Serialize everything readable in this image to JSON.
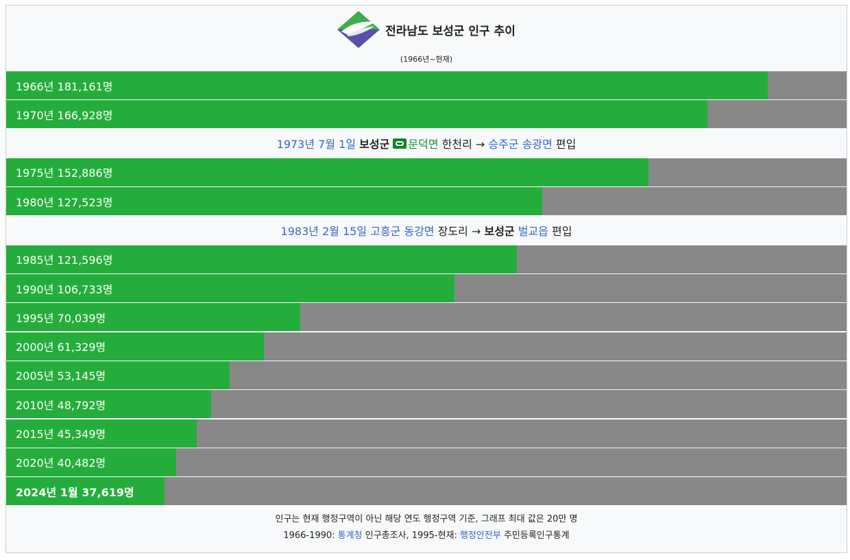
{
  "header": {
    "title": "전라남도 보성군 인구 추이",
    "subtitle": "(1966년~현재)"
  },
  "chart_data": {
    "type": "bar",
    "orientation": "horizontal",
    "max": 200000,
    "rows": [
      {
        "kind": "bar",
        "label": "1966년 181,161명",
        "year": 1966,
        "value": 181161
      },
      {
        "kind": "bar",
        "label": "1970년 166,928명",
        "year": 1970,
        "value": 166928
      },
      {
        "kind": "note",
        "parts": [
          {
            "text": "1973년 7월 1일",
            "style": "link"
          },
          {
            "text": " "
          },
          {
            "text": "보성군",
            "style": "bold"
          },
          {
            "text": " "
          },
          {
            "text": "",
            "style": "icon"
          },
          {
            "text": "문덕면",
            "style": "link-green"
          },
          {
            "text": " 한천리 → "
          },
          {
            "text": "승주군 송광면",
            "style": "link"
          },
          {
            "text": " 편입"
          }
        ]
      },
      {
        "kind": "bar",
        "label": "1975년 152,886명",
        "year": 1975,
        "value": 152886
      },
      {
        "kind": "bar",
        "label": "1980년 127,523명",
        "year": 1980,
        "value": 127523
      },
      {
        "kind": "note",
        "parts": [
          {
            "text": "1983년 2월 15일",
            "style": "link"
          },
          {
            "text": " "
          },
          {
            "text": "고흥군 동강면",
            "style": "link"
          },
          {
            "text": " 장도리 → "
          },
          {
            "text": "보성군",
            "style": "bold"
          },
          {
            "text": " "
          },
          {
            "text": "벌교읍",
            "style": "link"
          },
          {
            "text": " 편입"
          }
        ]
      },
      {
        "kind": "bar",
        "label": "1985년 121,596명",
        "year": 1985,
        "value": 121596
      },
      {
        "kind": "bar",
        "label": "1990년 106,733명",
        "year": 1990,
        "value": 106733
      },
      {
        "kind": "bar",
        "label": "1995년 70,039명",
        "year": 1995,
        "value": 70039
      },
      {
        "kind": "bar",
        "label": "2000년 61,329명",
        "year": 2000,
        "value": 61329
      },
      {
        "kind": "bar",
        "label": "2005년 53,145명",
        "year": 2005,
        "value": 53145
      },
      {
        "kind": "bar",
        "label": "2010년 48,792명",
        "year": 2010,
        "value": 48792
      },
      {
        "kind": "bar",
        "label": "2015년 45,349명",
        "year": 2015,
        "value": 45349
      },
      {
        "kind": "bar",
        "label": "2020년 40,482명",
        "year": 2020,
        "value": 40482
      },
      {
        "kind": "bar",
        "label": "2024년 1월 37,619명",
        "year": 2024,
        "value": 37619,
        "bold": true
      }
    ]
  },
  "footer": {
    "line1": "인구는 현재 행정구역이 아닌 해당 연도 행정구역 기준, 그래프 최대 값은 20만 명",
    "line2_prefix": "1966-1990: ",
    "line2_link1": "통계청",
    "line2_mid": " 인구총조사, 1995-현재: ",
    "line2_link2": "행정안전부",
    "line2_suffix": " 주민등록인구통계"
  },
  "colors": {
    "bar": "#25ad3c",
    "remainder": "#888888",
    "link": "#3366cc"
  }
}
